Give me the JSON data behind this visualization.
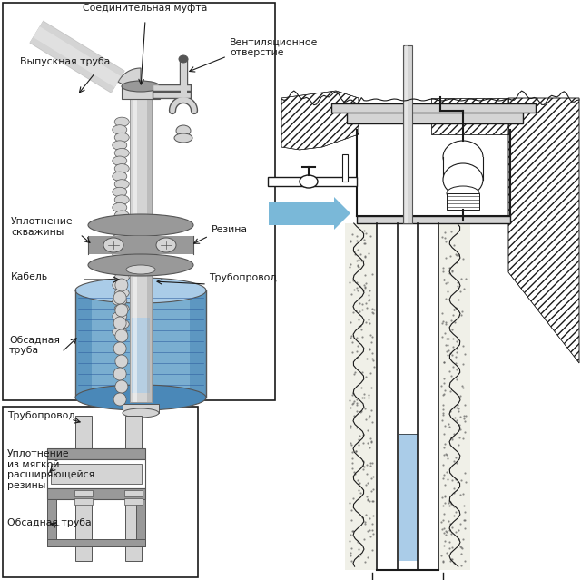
{
  "bg_color": "#ffffff",
  "light_gray": "#d4d4d4",
  "mid_gray": "#999999",
  "dark_gray": "#555555",
  "blue_light": "#aacce8",
  "blue_mid": "#7aaed0",
  "blue_dark": "#4a88b8",
  "blue_arrow": "#7ab8d8",
  "black": "#1a1a1a",
  "labels": {
    "soedinitelnaya": "Соединительная муфта",
    "vypusknaya": "Выпускная труба",
    "ventilyacionnoe": "Вентиляционное\nотверстие",
    "uplotnenie_skv": "Уплотнение\nскважины",
    "rezina": "Резина",
    "kabel": "Кабель",
    "truboprovod": "Трубопровод",
    "obsadnaya": "Обсадная\nтруба",
    "truboprovod2": "Трубопровод",
    "uplotnenie_myagk": "Уплотнение\nиз мягкой\nрасширяющейся\nрезины",
    "obsadnaya2": "Обсадная труба"
  },
  "fontsize": 7.8
}
